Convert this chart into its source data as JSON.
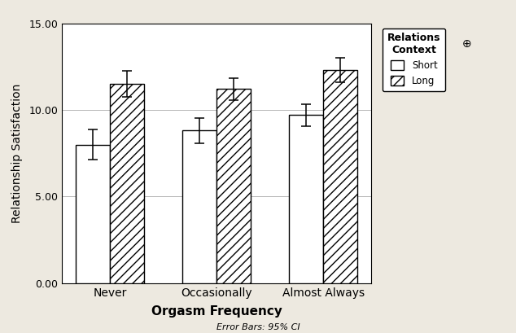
{
  "categories": [
    "Never",
    "Occasionally",
    "Almost Always"
  ],
  "short_values": [
    8.0,
    8.8,
    9.7
  ],
  "long_values": [
    11.5,
    11.2,
    12.3
  ],
  "short_errors": [
    0.85,
    0.75,
    0.65
  ],
  "long_errors": [
    0.75,
    0.65,
    0.7
  ],
  "ylabel": "Relationship Satisfaction",
  "xlabel": "Orgasm Frequency",
  "footnote": "Error Bars: 95% CI",
  "legend_title": "Relations\nContext",
  "legend_labels": [
    "Short",
    "Long"
  ],
  "ylim": [
    0,
    15.0
  ],
  "yticks": [
    0.0,
    5.0,
    10.0,
    15.0
  ],
  "ytick_labels": [
    "0.00",
    "5.00",
    "10.00",
    "15.00"
  ],
  "bar_width": 0.32,
  "background_color": "#ede9e0",
  "plot_bg_color": "#ffffff",
  "short_facecolor": "#ffffff",
  "short_edgecolor": "#000000",
  "long_facecolor": "#ffffff",
  "long_edgecolor": "#000000",
  "hatch_pattern": "///",
  "grid_color": "#aaaaaa",
  "ylabel_fontsize": 10,
  "xlabel_fontsize": 11,
  "tick_fontsize": 9
}
